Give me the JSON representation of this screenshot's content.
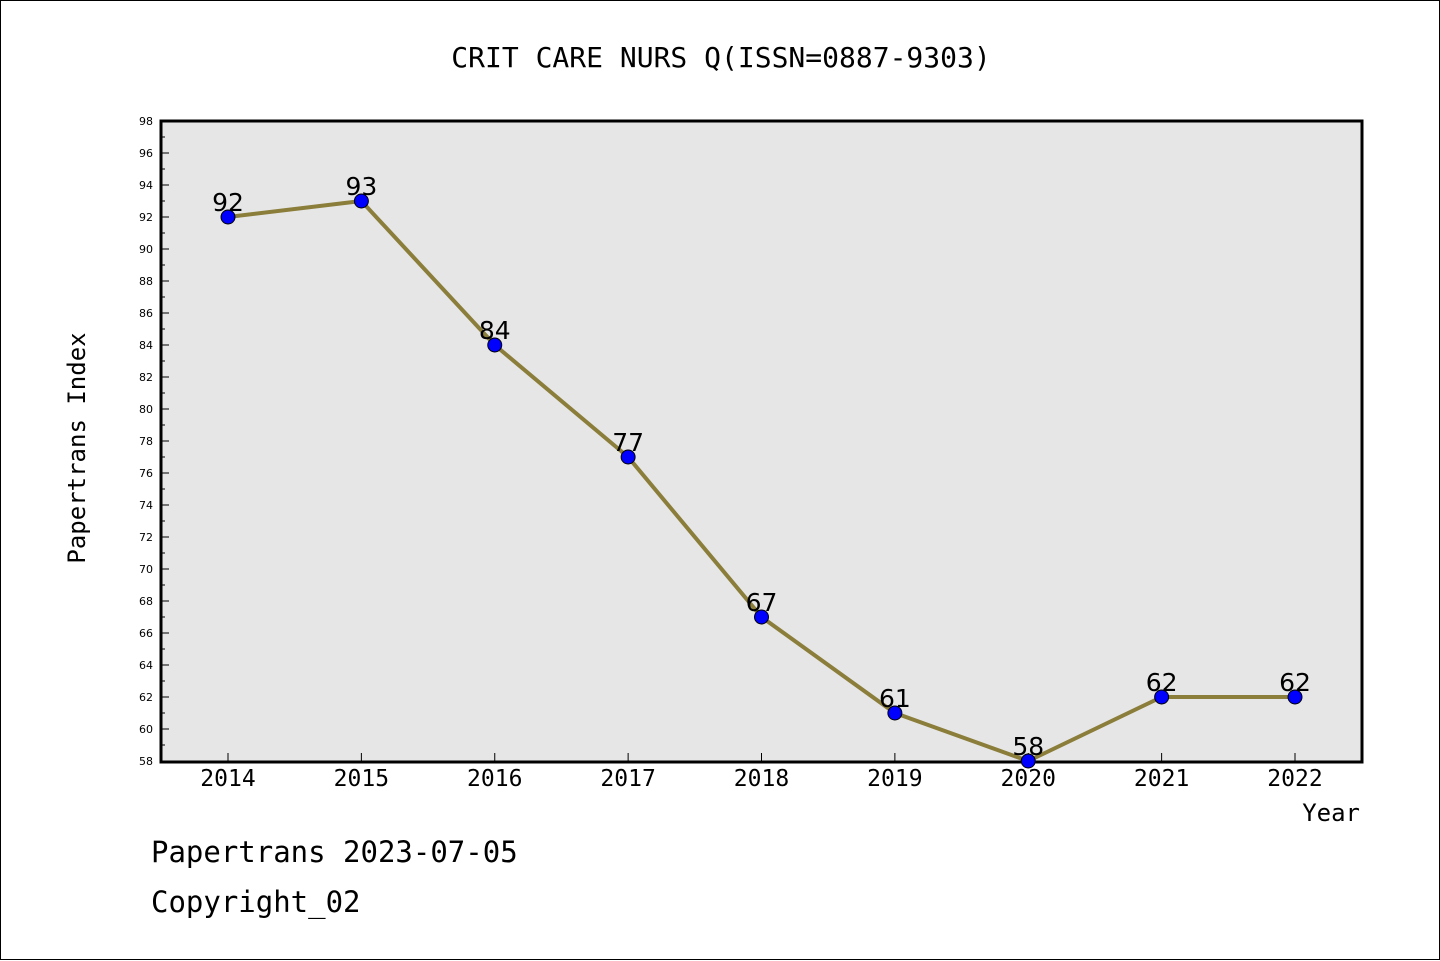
{
  "chart_data": {
    "type": "line",
    "title": "CRIT CARE NURS Q(ISSN=0887-9303)",
    "xlabel": "Year",
    "ylabel": "Papertrans Index",
    "categories": [
      "2014",
      "2015",
      "2016",
      "2017",
      "2018",
      "2019",
      "2020",
      "2021",
      "2022"
    ],
    "series": [
      {
        "values": [
          92,
          93,
          84,
          77,
          67,
          61,
          58,
          62,
          62
        ]
      }
    ],
    "data_labels": [
      "92",
      "93",
      "84",
      "77",
      "67",
      "61",
      "58",
      "62",
      "62"
    ],
    "ylim": [
      58,
      98
    ],
    "yticks": [
      "58",
      "60",
      "62",
      "64",
      "66",
      "68",
      "70",
      "72",
      "74",
      "76",
      "78",
      "80",
      "82",
      "84",
      "86",
      "88",
      "90",
      "92",
      "94",
      "96",
      "98"
    ],
    "grid": false,
    "line_color": "#8b7d3a",
    "marker_color": "#0000ff",
    "plot_background": "#e6e6e6"
  },
  "footer": {
    "date_line": "Papertrans 2023-07-05",
    "copyright": "Copyright_02"
  }
}
